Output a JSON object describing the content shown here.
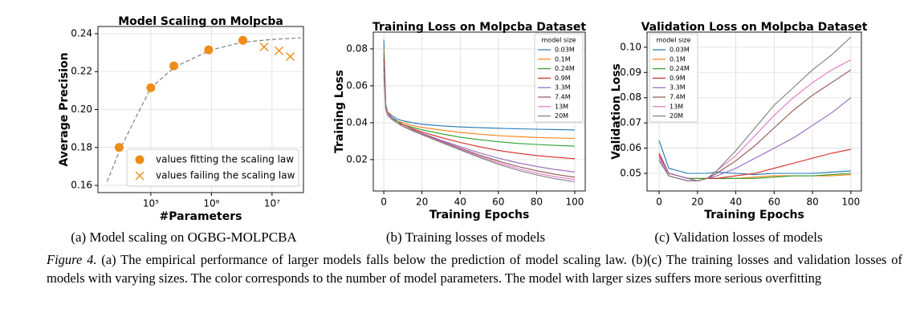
{
  "chart_data": [
    {
      "type": "scatter",
      "title": "Model Scaling on Molpcba",
      "xlabel": "#Parameters",
      "ylabel": "Average Precision",
      "xscale": "log",
      "xlim": [
        13400,
        33000000
      ],
      "xticks": [
        {
          "value": 100000,
          "label": "10⁵"
        },
        {
          "value": 1000000,
          "label": "10⁶"
        },
        {
          "value": 10000000,
          "label": "10⁷"
        }
      ],
      "ylim": [
        0.1562,
        0.2438
      ],
      "yticks": [
        0.16,
        0.18,
        {
          "value": 0.2,
          "label": "0.20"
        },
        0.22,
        0.24
      ],
      "grid": true,
      "legend": "lower right",
      "fit_curve": {
        "color": "#808080",
        "x": [
          19000,
          32000,
          100000,
          250000,
          1000000,
          3300000,
          10000000,
          30000000
        ],
        "values": [
          0.162,
          0.18,
          0.2115,
          0.2225,
          0.2315,
          0.2355,
          0.237,
          0.2378
        ]
      },
      "series": [
        {
          "name": "values fitting the scaling law",
          "color": "#ee8d18",
          "marker": "o",
          "x": [
            30000,
            100000,
            240000,
            900000,
            3300000
          ],
          "values": [
            0.18,
            0.2115,
            0.223,
            0.2315,
            0.2365
          ]
        },
        {
          "name": "values failing the scaling law",
          "color": "#ee8d18",
          "marker": "x",
          "x": [
            7400000,
            13000000,
            20000000
          ],
          "values": [
            0.233,
            0.231,
            0.228
          ]
        }
      ]
    },
    {
      "type": "line",
      "title": "Training Loss on Molpcba Dataset",
      "xlabel": "Training Epochs",
      "ylabel": "Training Loss",
      "xlim": [
        -5.5,
        105.5
      ],
      "xticks": [
        0,
        20,
        40,
        60,
        80,
        100
      ],
      "ylim": [
        0.003,
        0.0891
      ],
      "yticks": [
        0.02,
        0.04,
        0.06,
        0.08
      ],
      "grid": true,
      "legend": "upper right",
      "legend_title": "model size",
      "x": [
        0,
        1,
        2,
        4,
        7,
        10,
        15,
        20,
        30,
        40,
        50,
        60,
        70,
        80,
        90,
        100
      ],
      "series": [
        {
          "name": "0.03M",
          "color": "#1f77b4",
          "values": [
            0.085,
            0.05,
            0.046,
            0.044,
            0.042,
            0.041,
            0.04,
            0.0392,
            0.0383,
            0.0377,
            0.0373,
            0.037,
            0.0367,
            0.0365,
            0.0363,
            0.0361
          ]
        },
        {
          "name": "0.1M",
          "color": "#ff7f0e",
          "values": [
            0.08,
            0.049,
            0.046,
            0.043,
            0.041,
            0.04,
            0.0385,
            0.0375,
            0.036,
            0.0348,
            0.0338,
            0.033,
            0.0325,
            0.032,
            0.0317,
            0.0315
          ]
        },
        {
          "name": "0.24M",
          "color": "#2ca02c",
          "values": [
            0.078,
            0.049,
            0.045,
            0.043,
            0.041,
            0.039,
            0.0375,
            0.0362,
            0.034,
            0.0322,
            0.0308,
            0.0297,
            0.0288,
            0.0282,
            0.0277,
            0.0273
          ]
        },
        {
          "name": "0.9M",
          "color": "#d62728",
          "values": [
            0.075,
            0.048,
            0.045,
            0.043,
            0.04,
            0.039,
            0.0368,
            0.035,
            0.032,
            0.0293,
            0.027,
            0.025,
            0.0235,
            0.0222,
            0.0213,
            0.0205
          ]
        },
        {
          "name": "3.3M",
          "color": "#9467bd",
          "values": [
            0.072,
            0.048,
            0.045,
            0.043,
            0.04,
            0.038,
            0.0362,
            0.0343,
            0.0305,
            0.027,
            0.0237,
            0.0208,
            0.0183,
            0.0163,
            0.0146,
            0.0133
          ]
        },
        {
          "name": "7.4M",
          "color": "#8c564b",
          "values": [
            0.07,
            0.048,
            0.045,
            0.042,
            0.04,
            0.038,
            0.036,
            0.034,
            0.03,
            0.0262,
            0.0225,
            0.0192,
            0.0163,
            0.014,
            0.012,
            0.0105
          ]
        },
        {
          "name": "13M",
          "color": "#e377c2",
          "values": [
            0.068,
            0.048,
            0.045,
            0.042,
            0.04,
            0.038,
            0.0358,
            0.0338,
            0.0297,
            0.0257,
            0.0218,
            0.0183,
            0.0152,
            0.0127,
            0.0107,
            0.0092
          ]
        },
        {
          "name": "20M",
          "color": "#7f7f7f",
          "values": [
            0.066,
            0.047,
            0.044,
            0.042,
            0.04,
            0.038,
            0.0356,
            0.0335,
            0.0293,
            0.0252,
            0.0212,
            0.0175,
            0.0143,
            0.0117,
            0.0096,
            0.008
          ]
        }
      ]
    },
    {
      "type": "line",
      "title": "Validation Loss on Molpcba Dataset",
      "xlabel": "Training Epochs",
      "ylabel": "Validation Loss",
      "xlim": [
        -6.3,
        105.5
      ],
      "xticks": [
        0,
        20,
        40,
        60,
        80,
        100
      ],
      "ylim": [
        0.043,
        0.106
      ],
      "yticks": [
        0.05,
        0.06,
        0.07,
        0.08,
        0.09,
        {
          "value": 0.1,
          "label": "0.10"
        }
      ],
      "grid": true,
      "legend": "upper left",
      "legend_title": "model size",
      "x": [
        0,
        5,
        10,
        15,
        20,
        25,
        30,
        40,
        50,
        60,
        70,
        80,
        90,
        100
      ],
      "series": [
        {
          "name": "0.03M",
          "color": "#1f77b4",
          "values": [
            0.063,
            0.052,
            0.051,
            0.05,
            0.05,
            0.05,
            0.0505,
            0.05,
            0.0495,
            0.05,
            0.05,
            0.05,
            0.0505,
            0.051
          ]
        },
        {
          "name": "0.1M",
          "color": "#ff7f0e",
          "values": [
            0.058,
            0.05,
            0.049,
            0.048,
            0.048,
            0.048,
            0.048,
            0.048,
            0.0485,
            0.049,
            0.049,
            0.049,
            0.049,
            0.0495
          ]
        },
        {
          "name": "0.24M",
          "color": "#2ca02c",
          "values": [
            0.057,
            0.05,
            0.049,
            0.048,
            0.048,
            0.048,
            0.048,
            0.048,
            0.048,
            0.0485,
            0.049,
            0.049,
            0.0495,
            0.05
          ]
        },
        {
          "name": "0.9M",
          "color": "#d62728",
          "values": [
            0.058,
            0.05,
            0.049,
            0.048,
            0.047,
            0.048,
            0.048,
            0.049,
            0.05,
            0.052,
            0.054,
            0.056,
            0.058,
            0.0595
          ]
        },
        {
          "name": "3.3M",
          "color": "#9467bd",
          "values": [
            0.057,
            0.05,
            0.049,
            0.048,
            0.047,
            0.048,
            0.049,
            0.052,
            0.056,
            0.06,
            0.064,
            0.069,
            0.074,
            0.08
          ]
        },
        {
          "name": "7.4M",
          "color": "#8c564b",
          "values": [
            0.056,
            0.049,
            0.048,
            0.047,
            0.047,
            0.048,
            0.05,
            0.055,
            0.061,
            0.068,
            0.075,
            0.081,
            0.086,
            0.091
          ]
        },
        {
          "name": "13M",
          "color": "#e377c2",
          "values": [
            0.056,
            0.049,
            0.048,
            0.047,
            0.047,
            0.048,
            0.051,
            0.057,
            0.065,
            0.073,
            0.08,
            0.086,
            0.091,
            0.095
          ]
        },
        {
          "name": "20M",
          "color": "#7f7f7f",
          "values": [
            0.055,
            0.049,
            0.048,
            0.047,
            0.047,
            0.048,
            0.051,
            0.059,
            0.068,
            0.077,
            0.084,
            0.091,
            0.097,
            0.104
          ]
        }
      ]
    }
  ],
  "subcaptions": [
    "(a) Model scaling on OGBG-MOLPCBA",
    "(b) Training losses of models",
    "(c) Validation losses of models"
  ],
  "caption": {
    "label": "Figure 4.",
    "text": "(a) The empirical performance of larger models falls below the prediction of model scaling law. (b)(c) The training losses and validation losses of models with varying sizes. The color corresponds to the number of model parameters. The model with larger sizes suffers more serious overfitting"
  }
}
